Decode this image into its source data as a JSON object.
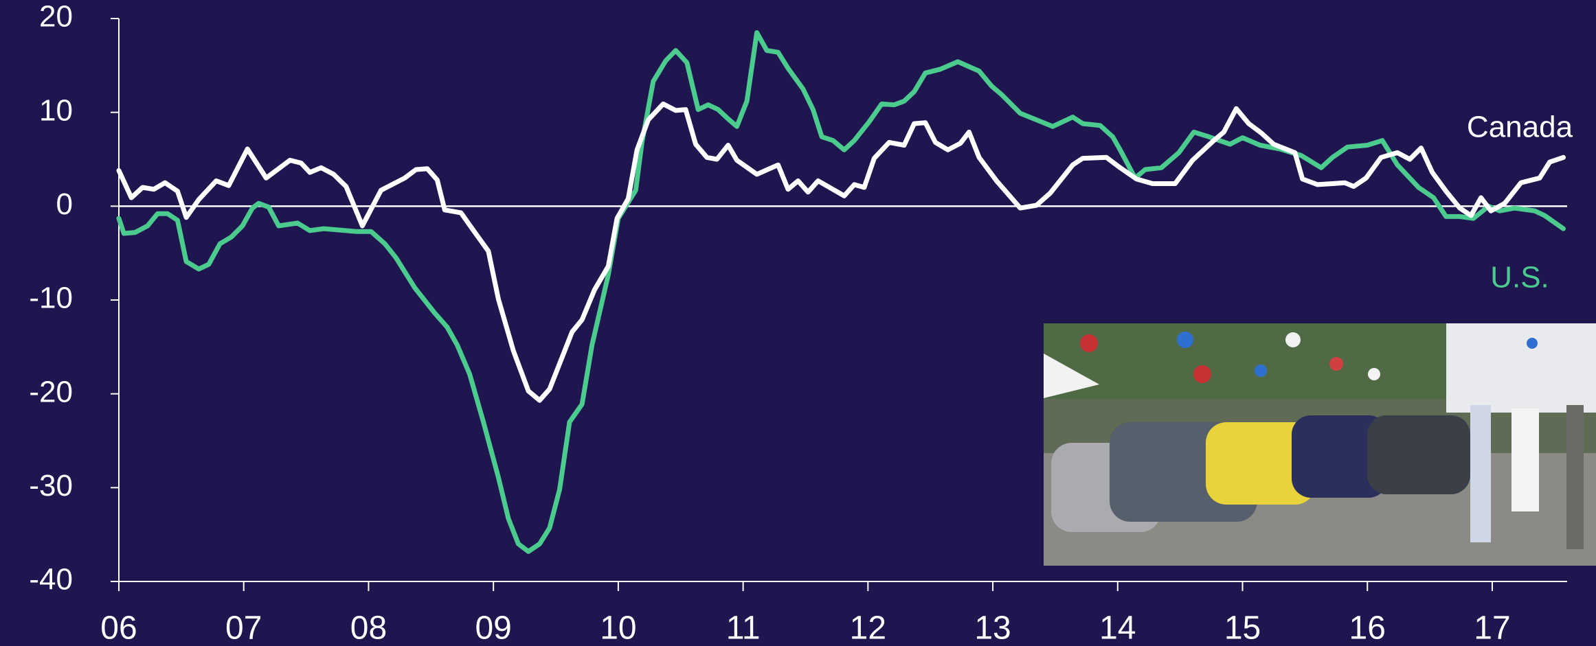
{
  "chart_data": {
    "type": "line",
    "xlim": [
      2006,
      2017.6
    ],
    "xticks": [
      {
        "value": 2006,
        "label": "06"
      },
      {
        "value": 2007,
        "label": "07"
      },
      {
        "value": 2008,
        "label": "08"
      },
      {
        "value": 2009,
        "label": "09"
      },
      {
        "value": 2010,
        "label": "10"
      },
      {
        "value": 2011,
        "label": "11"
      },
      {
        "value": 2012,
        "label": "12"
      },
      {
        "value": 2013,
        "label": "13"
      },
      {
        "value": 2014,
        "label": "14"
      },
      {
        "value": 2015,
        "label": "15"
      },
      {
        "value": 2016,
        "label": "16"
      },
      {
        "value": 2017,
        "label": "17"
      }
    ],
    "ylim": [
      -40,
      20
    ],
    "yticks": [
      -40,
      -30,
      -20,
      -10,
      0,
      10,
      20
    ],
    "zero_line": true,
    "series": [
      {
        "name": "Canada",
        "color": "#ffffff",
        "x": [
          2006.0,
          2006.1,
          2006.19,
          2006.28,
          2006.37,
          2006.47,
          2006.54,
          2006.64,
          2006.78,
          2006.88,
          2007.03,
          2007.18,
          2007.37,
          2007.46,
          2007.53,
          2007.62,
          2007.72,
          2007.82,
          2007.95,
          2008.1,
          2008.29,
          2008.38,
          2008.47,
          2008.55,
          2008.61,
          2008.74,
          2008.83,
          2008.96,
          2009.04,
          2009.16,
          2009.28,
          2009.37,
          2009.45,
          2009.63,
          2009.71,
          2009.81,
          2009.92,
          2009.99,
          2010.08,
          2010.15,
          2010.24,
          2010.36,
          2010.46,
          2010.54,
          2010.62,
          2010.71,
          2010.79,
          2010.88,
          2010.95,
          2011.11,
          2011.28,
          2011.36,
          2011.44,
          2011.52,
          2011.6,
          2011.81,
          2011.89,
          2011.97,
          2012.05,
          2012.17,
          2012.29,
          2012.37,
          2012.46,
          2012.54,
          2012.64,
          2012.74,
          2012.81,
          2012.89,
          2013.03,
          2013.22,
          2013.35,
          2013.46,
          2013.64,
          2013.72,
          2013.91,
          2014.02,
          2014.15,
          2014.28,
          2014.46,
          2014.6,
          2014.77,
          2014.85,
          2014.95,
          2015.05,
          2015.15,
          2015.25,
          2015.42,
          2015.48,
          2015.6,
          2015.72,
          2015.82,
          2015.89,
          2015.99,
          2016.11,
          2016.24,
          2016.34,
          2016.43,
          2016.52,
          2016.63,
          2016.74,
          2016.83,
          2016.91,
          2016.99,
          2017.1,
          2017.23,
          2017.38,
          2017.46,
          2017.57
        ],
        "values": [
          3.8,
          0.9,
          2,
          1.8,
          2.5,
          1.6,
          -1.2,
          0.7,
          2.7,
          2.2,
          6.1,
          3.0,
          4.9,
          4.6,
          3.6,
          4.1,
          3.4,
          2.1,
          -2.1,
          1.7,
          3.0,
          3.9,
          4.0,
          2.8,
          -0.4,
          -0.7,
          -2.4,
          -4.8,
          -9.9,
          -15.4,
          -19.7,
          -20.7,
          -19.5,
          -13.4,
          -12.1,
          -8.9,
          -6.4,
          -1.3,
          0.8,
          6.0,
          9.2,
          10.9,
          10.2,
          10.3,
          6.6,
          5.2,
          5.0,
          6.5,
          4.9,
          3.4,
          4.4,
          1.8,
          2.7,
          1.5,
          2.7,
          1.1,
          2.3,
          2.0,
          5.1,
          6.8,
          6.5,
          8.8,
          8.9,
          6.8,
          6.0,
          6.7,
          7.9,
          5.2,
          2.7,
          -0.2,
          0.1,
          1.4,
          4.4,
          5.1,
          5.2,
          4.1,
          2.9,
          2.4,
          2.4,
          4.9,
          7.0,
          7.9,
          10.4,
          8.8,
          7.8,
          6.6,
          5.7,
          2.9,
          2.3,
          2.4,
          2.5,
          2.1,
          3.0,
          5.2,
          5.7,
          5.0,
          6.2,
          3.6,
          1.6,
          -0.2,
          -1.0,
          0.9,
          -0.5,
          0.3,
          2.5,
          3.0,
          4.7,
          5.2
        ]
      },
      {
        "name": "U.S.",
        "color": "#4ccb8f",
        "x": [
          2006.0,
          2006.04,
          2006.13,
          2006.23,
          2006.31,
          2006.39,
          2006.47,
          2006.54,
          2006.64,
          2006.72,
          2006.81,
          2006.9,
          2006.99,
          2007.07,
          2007.12,
          2007.2,
          2007.28,
          2007.43,
          2007.53,
          2007.64,
          2007.73,
          2007.9,
          2008.02,
          2008.13,
          2008.22,
          2008.37,
          2008.53,
          2008.63,
          2008.71,
          2008.81,
          2008.92,
          2009.04,
          2009.12,
          2009.2,
          2009.28,
          2009.37,
          2009.45,
          2009.53,
          2009.61,
          2009.71,
          2009.79,
          2009.92,
          2010.0,
          2010.14,
          2010.19,
          2010.28,
          2010.38,
          2010.46,
          2010.55,
          2010.64,
          2010.72,
          2010.8,
          2010.88,
          2010.95,
          2011.03,
          2011.11,
          2011.19,
          2011.28,
          2011.36,
          2011.48,
          2011.56,
          2011.63,
          2011.72,
          2011.81,
          2011.89,
          2012.01,
          2012.11,
          2012.21,
          2012.29,
          2012.37,
          2012.46,
          2012.58,
          2012.72,
          2012.89,
          2012.99,
          2013.07,
          2013.22,
          2013.35,
          2013.48,
          2013.64,
          2013.72,
          2013.86,
          2013.96,
          2014.02,
          2014.14,
          2014.22,
          2014.35,
          2014.49,
          2014.61,
          2014.73,
          2014.9,
          2015.0,
          2015.14,
          2015.3,
          2015.47,
          2015.63,
          2015.72,
          2015.84,
          2016.0,
          2016.12,
          2016.24,
          2016.41,
          2016.53,
          2016.63,
          2016.74,
          2016.85,
          2016.97,
          2017.06,
          2017.18,
          2017.34,
          2017.42,
          2017.57
        ],
        "values": [
          -1.3,
          -2.9,
          -2.8,
          -2.1,
          -0.8,
          -0.8,
          -1.5,
          -5.9,
          -6.7,
          -6.2,
          -4.0,
          -3.3,
          -2.1,
          -0.2,
          0.3,
          -0.1,
          -2.1,
          -1.8,
          -2.6,
          -2.4,
          -2.5,
          -2.7,
          -2.7,
          -4.0,
          -5.5,
          -8.7,
          -11.4,
          -12.9,
          -14.8,
          -17.9,
          -23.0,
          -28.9,
          -33.3,
          -36.0,
          -36.8,
          -36.0,
          -34.3,
          -30.2,
          -23.0,
          -21.1,
          -14.8,
          -7.3,
          -1.3,
          1.7,
          6.8,
          13.3,
          15.5,
          16.6,
          15.3,
          10.3,
          10.8,
          10.3,
          9.3,
          8.5,
          11.2,
          18.5,
          16.6,
          16.4,
          14.7,
          12.5,
          10.3,
          7.4,
          7.0,
          6.0,
          7.0,
          9.0,
          10.9,
          10.8,
          11.2,
          12.2,
          14.2,
          14.6,
          15.4,
          14.4,
          12.8,
          11.9,
          9.9,
          9.2,
          8.5,
          9.5,
          8.8,
          8.6,
          7.4,
          6.0,
          3.0,
          3.9,
          4.1,
          5.7,
          7.9,
          7.4,
          6.6,
          7.3,
          6.5,
          6.1,
          5.4,
          4.1,
          5.2,
          6.3,
          6.5,
          7.0,
          4.4,
          2.0,
          0.9,
          -1.1,
          -1.1,
          -1.3,
          0.0,
          -0.5,
          -0.2,
          -0.5,
          -1.0,
          -2.4
        ]
      }
    ]
  }
}
